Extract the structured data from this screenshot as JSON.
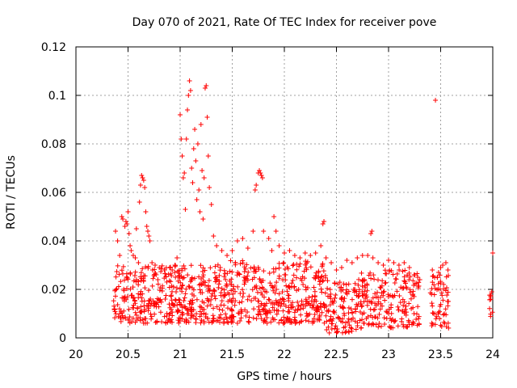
{
  "chart_data": {
    "type": "scatter",
    "title": "Day 070 of 2021, Rate Of TEC Index for receiver pove",
    "xlabel": "GPS time / hours",
    "ylabel": "ROTI / TECUs",
    "xlim": [
      20,
      24
    ],
    "ylim": [
      0,
      0.12
    ],
    "grid": true,
    "xticks": [
      20,
      20.5,
      21,
      21.5,
      22,
      22.5,
      23,
      23.5,
      24
    ],
    "xtick_labels": [
      "20",
      "20.5",
      "21",
      "21.5",
      "22",
      "22.5",
      "23",
      "23.5",
      "24"
    ],
    "yticks": [
      0,
      0.02,
      0.04,
      0.06,
      0.08,
      0.1,
      0.12
    ],
    "ytick_labels": [
      "0",
      "0.02",
      "0.04",
      "0.06",
      "0.08",
      "0.1",
      "0.12"
    ],
    "marker": "+",
    "color": "#ff0000",
    "series": [
      {
        "name": "ROTI",
        "points": [
          [
            20.38,
            0.044
          ],
          [
            20.4,
            0.04
          ],
          [
            20.42,
            0.034
          ],
          [
            20.44,
            0.05
          ],
          [
            20.45,
            0.049
          ],
          [
            20.47,
            0.046
          ],
          [
            20.48,
            0.048
          ],
          [
            20.49,
            0.047
          ],
          [
            20.5,
            0.052
          ],
          [
            20.51,
            0.043
          ],
          [
            20.52,
            0.038
          ],
          [
            20.53,
            0.036
          ],
          [
            20.55,
            0.034
          ],
          [
            20.57,
            0.033
          ],
          [
            20.58,
            0.045
          ],
          [
            20.6,
            0.031
          ],
          [
            20.61,
            0.056
          ],
          [
            20.62,
            0.063
          ],
          [
            20.63,
            0.067
          ],
          [
            20.64,
            0.066
          ],
          [
            20.65,
            0.065
          ],
          [
            20.66,
            0.062
          ],
          [
            20.67,
            0.052
          ],
          [
            20.68,
            0.046
          ],
          [
            20.69,
            0.044
          ],
          [
            20.7,
            0.042
          ],
          [
            20.71,
            0.04
          ],
          [
            20.73,
            0.031
          ],
          [
            20.76,
            0.03
          ],
          [
            20.8,
            0.029
          ],
          [
            20.85,
            0.028
          ],
          [
            20.9,
            0.029
          ],
          [
            20.95,
            0.03
          ],
          [
            20.97,
            0.033
          ],
          [
            21.0,
            0.092
          ],
          [
            21.01,
            0.082
          ],
          [
            21.02,
            0.075
          ],
          [
            21.03,
            0.066
          ],
          [
            21.04,
            0.068
          ],
          [
            21.05,
            0.053
          ],
          [
            21.06,
            0.082
          ],
          [
            21.07,
            0.094
          ],
          [
            21.08,
            0.1
          ],
          [
            21.09,
            0.106
          ],
          [
            21.1,
            0.102
          ],
          [
            21.11,
            0.07
          ],
          [
            21.12,
            0.064
          ],
          [
            21.13,
            0.078
          ],
          [
            21.14,
            0.086
          ],
          [
            21.15,
            0.073
          ],
          [
            21.16,
            0.057
          ],
          [
            21.17,
            0.08
          ],
          [
            21.18,
            0.061
          ],
          [
            21.19,
            0.052
          ],
          [
            21.2,
            0.088
          ],
          [
            21.21,
            0.069
          ],
          [
            21.22,
            0.049
          ],
          [
            21.23,
            0.066
          ],
          [
            21.24,
            0.103
          ],
          [
            21.25,
            0.104
          ],
          [
            21.26,
            0.091
          ],
          [
            21.27,
            0.075
          ],
          [
            21.28,
            0.062
          ],
          [
            21.3,
            0.055
          ],
          [
            21.32,
            0.042
          ],
          [
            21.35,
            0.038
          ],
          [
            21.4,
            0.036
          ],
          [
            21.45,
            0.034
          ],
          [
            21.5,
            0.036
          ],
          [
            21.55,
            0.04
          ],
          [
            21.6,
            0.041
          ],
          [
            21.65,
            0.037
          ],
          [
            21.7,
            0.044
          ],
          [
            21.72,
            0.061
          ],
          [
            21.73,
            0.063
          ],
          [
            21.75,
            0.068
          ],
          [
            21.76,
            0.069
          ],
          [
            21.77,
            0.068
          ],
          [
            21.78,
            0.067
          ],
          [
            21.79,
            0.066
          ],
          [
            21.8,
            0.044
          ],
          [
            21.85,
            0.041
          ],
          [
            21.88,
            0.036
          ],
          [
            21.9,
            0.05
          ],
          [
            21.92,
            0.044
          ],
          [
            21.95,
            0.038
          ],
          [
            22.0,
            0.035
          ],
          [
            22.05,
            0.036
          ],
          [
            22.1,
            0.034
          ],
          [
            22.15,
            0.033
          ],
          [
            22.2,
            0.035
          ],
          [
            22.25,
            0.034
          ],
          [
            22.3,
            0.035
          ],
          [
            22.35,
            0.038
          ],
          [
            22.37,
            0.047
          ],
          [
            22.38,
            0.048
          ],
          [
            22.4,
            0.033
          ],
          [
            22.45,
            0.031
          ],
          [
            22.5,
            0.028
          ],
          [
            22.55,
            0.029
          ],
          [
            22.6,
            0.032
          ],
          [
            22.65,
            0.031
          ],
          [
            22.7,
            0.033
          ],
          [
            22.75,
            0.034
          ],
          [
            22.8,
            0.034
          ],
          [
            22.83,
            0.043
          ],
          [
            22.84,
            0.044
          ],
          [
            22.85,
            0.033
          ],
          [
            22.9,
            0.031
          ],
          [
            22.95,
            0.03
          ],
          [
            23.0,
            0.032
          ],
          [
            23.05,
            0.031
          ],
          [
            23.1,
            0.03
          ],
          [
            23.15,
            0.031
          ],
          [
            23.2,
            0.029
          ],
          [
            23.25,
            0.026
          ],
          [
            23.28,
            0.025
          ],
          [
            23.3,
            0.024
          ],
          [
            23.42,
            0.028
          ],
          [
            23.45,
            0.098
          ],
          [
            23.48,
            0.027
          ],
          [
            23.5,
            0.029
          ],
          [
            23.52,
            0.03
          ],
          [
            23.55,
            0.031
          ],
          [
            23.57,
            0.028
          ],
          [
            24.0,
            0.035
          ],
          [
            23.99,
            0.019
          ],
          [
            23.98,
            0.017
          ]
        ],
        "band": [
          {
            "x_from": 20.36,
            "x_to": 21.3,
            "y_min": 0.006,
            "y_max": 0.03,
            "density": 40
          },
          {
            "x_from": 21.3,
            "x_to": 22.4,
            "y_min": 0.006,
            "y_max": 0.032,
            "density": 40
          },
          {
            "x_from": 22.4,
            "x_to": 22.7,
            "y_min": 0.002,
            "y_max": 0.024,
            "density": 36
          },
          {
            "x_from": 22.7,
            "x_to": 23.3,
            "y_min": 0.004,
            "y_max": 0.028,
            "density": 36
          },
          {
            "x_from": 23.4,
            "x_to": 23.58,
            "y_min": 0.004,
            "y_max": 0.026,
            "density": 34
          },
          {
            "x_from": 23.96,
            "x_to": 24.0,
            "y_min": 0.008,
            "y_max": 0.018,
            "density": 20
          }
        ]
      }
    ]
  }
}
